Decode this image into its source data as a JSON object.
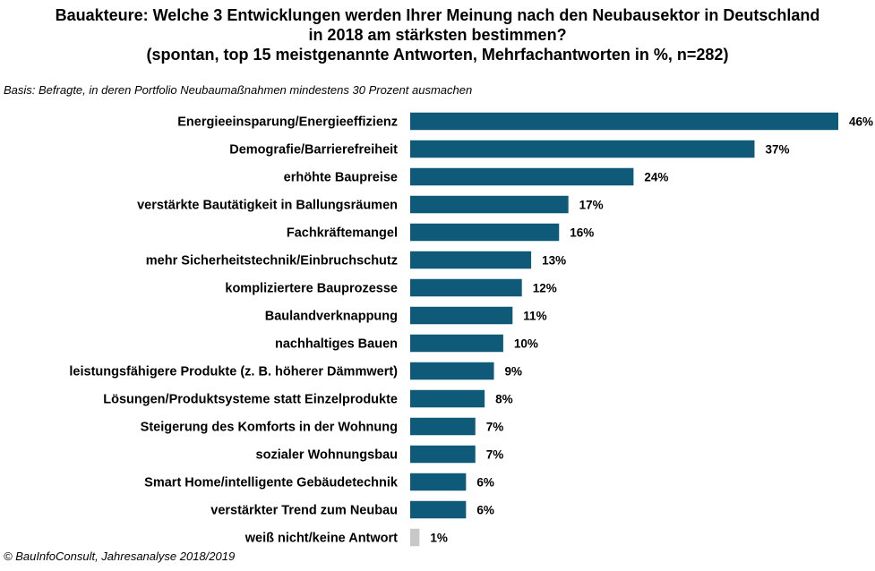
{
  "title_lines": [
    "Bauakteure: Welche 3 Entwicklungen  werden Ihrer Meinung nach den Neubausektor in Deutschland",
    "in 2018 am stärksten bestimmen?",
    "(spontan, top 15 meistgenannte  Antworten, Mehrfachantworten  in %, n=282)"
  ],
  "basis": "Basis: Befragte, in deren Portfolio Neubaumaßnahmen mindestens 30 Prozent ausmachen",
  "footer": "© BauInfoConsult, Jahresanalyse 2018/2019",
  "colors": {
    "bar": "#0e5a78",
    "bar_other": "#c8c8c8"
  },
  "chart_data": {
    "type": "bar",
    "orientation": "horizontal",
    "categories": [
      "Energieeinsparung/Energieeffizienz",
      "Demografie/Barrierefreiheit",
      "erhöhte Baupreise",
      "verstärkte Bautätigkeit in Ballungsräumen",
      "Fachkräftemangel",
      "mehr Sicherheitstechnik/Einbruchschutz",
      "kompliziertere Bauprozesse",
      "Baulandverknappung",
      "nachhaltiges Bauen",
      "leistungsfähigere Produkte (z. B. höherer Dämmwert)",
      "Lösungen/Produktsysteme statt Einzelprodukte",
      "Steigerung des Komforts in der Wohnung",
      "sozialer Wohnungsbau",
      "Smart Home/intelligente Gebäudetechnik",
      "verstärkter Trend zum Neubau",
      "weiß nicht/keine Antwort"
    ],
    "values": [
      46,
      37,
      24,
      17,
      16,
      13,
      12,
      11,
      10,
      9,
      8,
      7,
      7,
      6,
      6,
      1
    ],
    "value_labels": [
      "46%",
      "37%",
      "24%",
      "17%",
      "16%",
      "13%",
      "12%",
      "11%",
      "10%",
      "9%",
      "8%",
      "7%",
      "7%",
      "6%",
      "6%",
      "1%"
    ],
    "highlight_last_as_other": true,
    "xlim": [
      0,
      46
    ],
    "grid": false,
    "legend": "none"
  }
}
